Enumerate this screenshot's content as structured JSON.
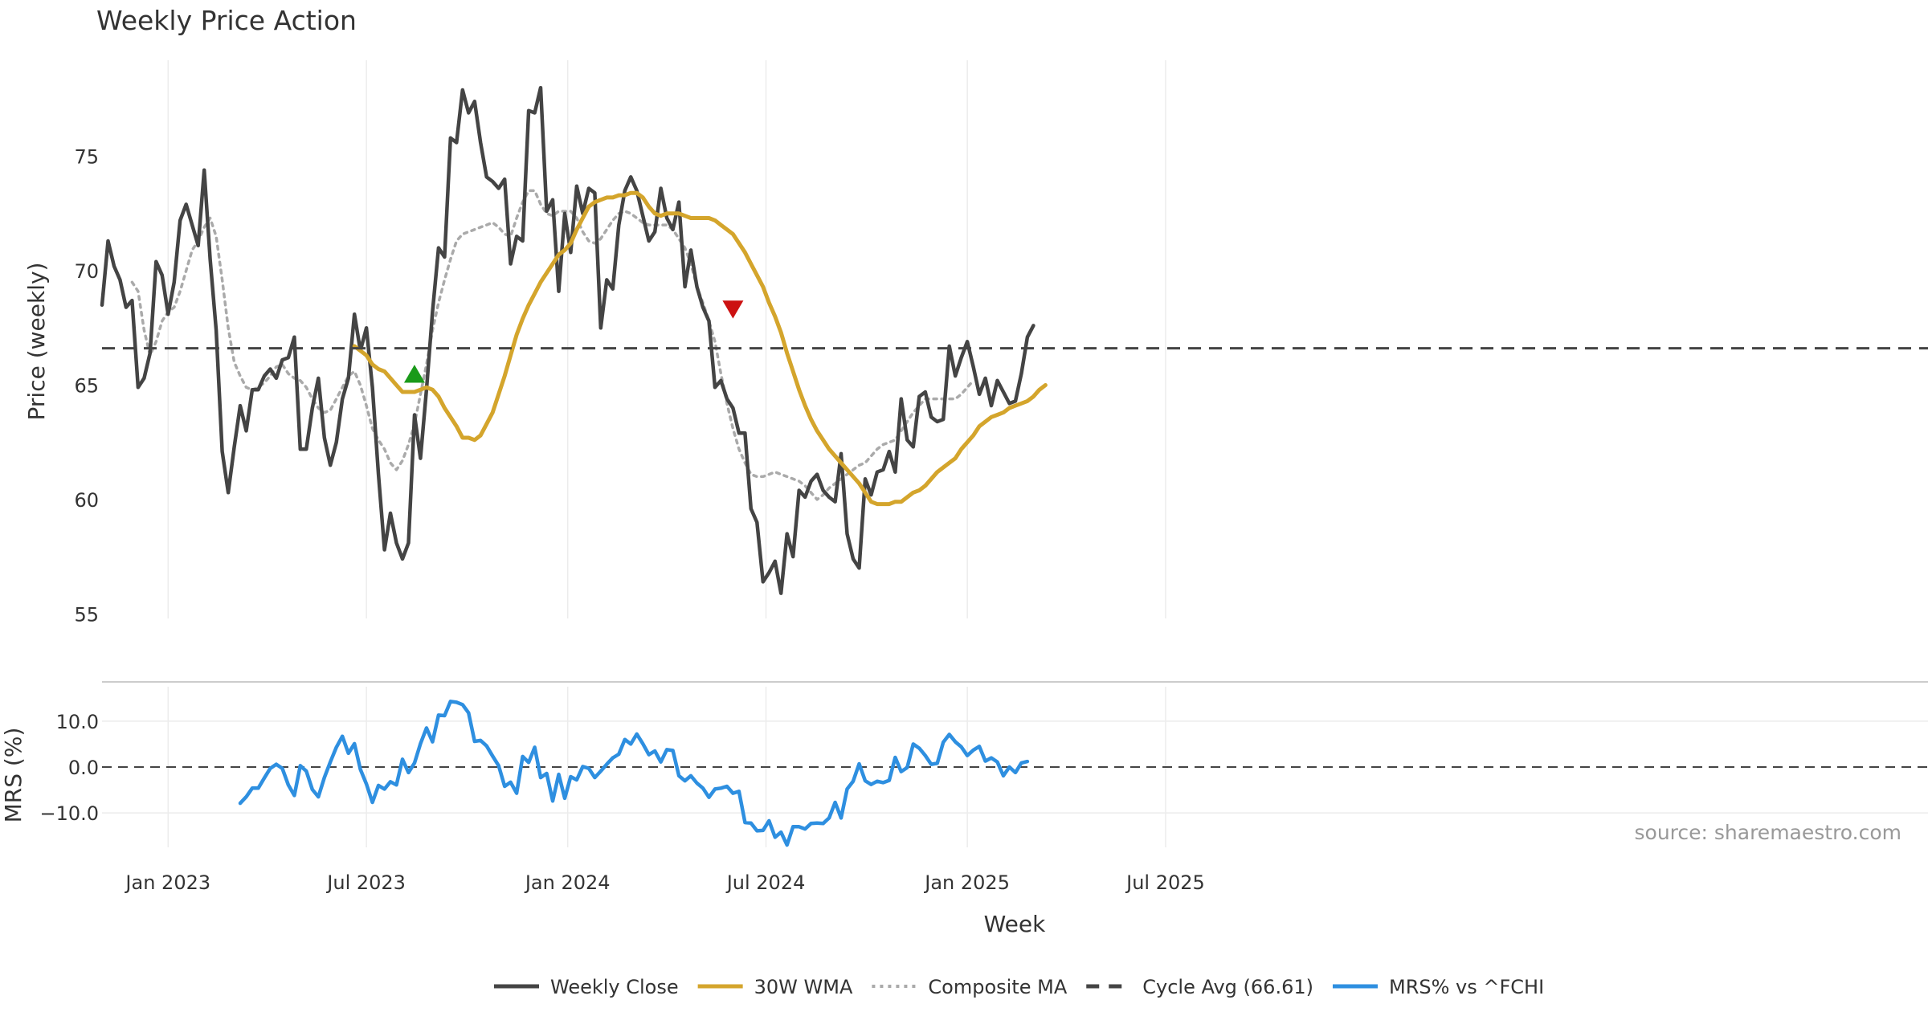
{
  "chart_data": {
    "type": "line",
    "title": "Weekly Price Action",
    "source_note": "source: sharemaestro.com",
    "xlabel": "Week",
    "x_ticks": [
      "Jan 2023",
      "Jul 2023",
      "Jan 2024",
      "Jul 2024",
      "Jan 2025",
      "Jul 2025"
    ],
    "price_panel": {
      "ylabel": "Price (weekly)",
      "ylim": [
        54.8,
        79.2
      ],
      "y_ticks": [
        "55",
        "60",
        "65",
        "70",
        "75"
      ],
      "cycle_avg": 66.61,
      "series": [
        {
          "name": "Weekly Close",
          "color": "#444444",
          "style": "solid",
          "start_week": 0,
          "values": [
            68.5,
            71.3,
            70.2,
            69.6,
            68.4,
            68.7,
            64.9,
            65.3,
            66.4,
            70.4,
            69.8,
            68.1,
            69.5,
            72.2,
            72.9,
            72.0,
            71.1,
            74.4,
            70.5,
            67.4,
            62.1,
            60.3,
            62.3,
            64.1,
            63.0,
            64.8,
            64.8,
            65.4,
            65.7,
            65.3,
            66.1,
            66.2,
            67.1,
            62.2,
            62.2,
            64.0,
            65.3,
            62.7,
            61.5,
            62.5,
            64.4,
            65.3,
            68.1,
            66.5,
            67.5,
            64.9,
            61.1,
            57.8,
            59.4,
            58.1,
            57.4,
            58.1,
            63.7,
            61.8,
            64.8,
            68.2,
            71.0,
            70.6,
            75.8,
            75.6,
            77.9,
            76.9,
            77.4,
            75.6,
            74.1,
            73.9,
            73.6,
            74.0,
            70.3,
            71.5,
            71.3,
            77.0,
            76.9,
            78.0,
            72.6,
            73.1,
            69.1,
            72.5,
            70.8,
            73.7,
            72.5,
            73.6,
            73.4,
            67.5,
            69.6,
            69.2,
            72.0,
            73.5,
            74.1,
            73.5,
            72.4,
            71.3,
            71.7,
            73.6,
            72.3,
            71.8,
            73.0,
            69.3,
            70.9,
            69.3,
            68.4,
            67.8,
            64.9,
            65.2,
            64.4,
            64.0,
            62.9,
            62.9,
            59.6,
            59.0,
            56.4,
            56.8,
            57.3,
            55.9,
            58.5,
            57.5,
            60.4,
            60.1,
            60.8,
            61.1,
            60.4,
            60.1,
            59.9,
            62.0,
            58.5,
            57.4,
            57.0,
            60.9,
            60.2,
            61.2,
            61.3,
            62.1,
            61.2,
            64.4,
            62.6,
            62.3,
            64.5,
            64.7,
            63.6,
            63.4,
            63.5,
            66.7,
            65.4,
            66.2,
            66.9,
            65.8,
            64.6,
            65.3,
            64.1,
            65.2,
            64.7,
            64.2,
            64.3,
            65.5,
            67.1,
            67.6
          ]
        },
        {
          "name": "30W WMA",
          "color": "#d4a52c",
          "style": "solid",
          "start_week": 42,
          "values": [
            66.7,
            66.5,
            66.3,
            65.9,
            65.7,
            65.6,
            65.3,
            65.0,
            64.7,
            64.7,
            64.7,
            64.8,
            64.9,
            64.8,
            64.5,
            64.0,
            63.6,
            63.2,
            62.7,
            62.7,
            62.6,
            62.8,
            63.3,
            63.8,
            64.6,
            65.4,
            66.3,
            67.2,
            67.9,
            68.5,
            69.0,
            69.5,
            69.9,
            70.3,
            70.7,
            70.9,
            71.2,
            71.8,
            72.3,
            72.8,
            73.0,
            73.1,
            73.2,
            73.2,
            73.3,
            73.3,
            73.4,
            73.4,
            73.2,
            72.8,
            72.5,
            72.4,
            72.5,
            72.5,
            72.5,
            72.4,
            72.3,
            72.3,
            72.3,
            72.3,
            72.2,
            72.0,
            71.8,
            71.6,
            71.2,
            70.8,
            70.3,
            69.8,
            69.3,
            68.6,
            68.0,
            67.3,
            66.4,
            65.6,
            64.8,
            64.1,
            63.5,
            63.0,
            62.6,
            62.2,
            61.9,
            61.6,
            61.3,
            61.0,
            60.7,
            60.3,
            59.9,
            59.8,
            59.8,
            59.8,
            59.9,
            59.9,
            60.1,
            60.3,
            60.4,
            60.6,
            60.9,
            61.2,
            61.4,
            61.6,
            61.8,
            62.2,
            62.5,
            62.8,
            63.2,
            63.4,
            63.6,
            63.7,
            63.8,
            64.0,
            64.1,
            64.2,
            64.3,
            64.5,
            64.8,
            65.0
          ]
        },
        {
          "name": "Composite MA",
          "color": "#aaaaaa",
          "style": "dotted",
          "start_week": 5,
          "values": [
            69.5,
            69.1,
            67.4,
            66.3,
            66.9,
            67.8,
            68.2,
            68.4,
            69.1,
            70.0,
            70.9,
            71.3,
            71.9,
            72.3,
            71.5,
            69.6,
            67.5,
            66.0,
            65.4,
            64.9,
            64.8,
            64.9,
            65.1,
            65.4,
            65.8,
            65.9,
            65.5,
            65.3,
            65.2,
            64.9,
            64.4,
            64.0,
            63.8,
            63.9,
            64.4,
            64.9,
            65.4,
            65.6,
            65.0,
            64.1,
            63.1,
            62.6,
            62.2,
            61.6,
            61.3,
            61.7,
            62.4,
            63.3,
            64.6,
            65.9,
            67.4,
            68.6,
            69.6,
            70.5,
            71.3,
            71.6,
            71.7,
            71.8,
            71.9,
            72.0,
            72.1,
            71.9,
            71.6,
            71.5,
            72.3,
            73.0,
            73.5,
            73.5,
            72.9,
            72.5,
            72.4,
            72.6,
            72.6,
            72.6,
            72.3,
            71.7,
            71.3,
            71.2,
            71.4,
            71.8,
            72.2,
            72.5,
            72.6,
            72.5,
            72.3,
            72.1,
            72.0,
            72.0,
            72.0,
            72.0,
            71.8,
            71.4,
            71.0,
            70.3,
            69.3,
            68.6,
            67.8,
            66.9,
            65.5,
            64.2,
            63.1,
            62.2,
            61.6,
            61.1,
            61.0,
            61.0,
            61.1,
            61.2,
            61.1,
            61.0,
            60.9,
            60.8,
            60.6,
            60.3,
            60.0,
            60.2,
            60.5,
            60.7,
            60.9,
            61.1,
            61.3,
            61.5,
            61.6,
            61.9,
            62.2,
            62.4,
            62.5,
            62.6,
            63.0,
            63.4,
            63.8,
            64.1,
            64.4,
            64.4,
            64.4,
            64.4,
            64.4,
            64.4,
            64.6,
            64.9,
            65.2
          ]
        }
      ],
      "markers": [
        {
          "type": "buy",
          "week": 52,
          "value": 65.4,
          "color": "#1a9a1a"
        },
        {
          "type": "sell",
          "week": 105,
          "value": 68.4,
          "color": "#cc1111"
        }
      ]
    },
    "mrs_panel": {
      "ylabel": "MRS (%)",
      "ylim": [
        -17.5,
        17.5
      ],
      "y_ticks": [
        "10.0",
        "0.0",
        "−10.0"
      ],
      "series": [
        {
          "name": "MRS% vs ^FCHI",
          "color": "#2e8fe0",
          "style": "solid",
          "start_week": 23,
          "values": [
            -7.9,
            -6.5,
            -4.6,
            -4.6,
            -2.4,
            -0.3,
            0.6,
            -0.3,
            -3.9,
            -6.2,
            0.3,
            -0.9,
            -4.9,
            -6.5,
            -2.3,
            1.1,
            4.3,
            6.7,
            3.0,
            5.1,
            -0.5,
            -3.7,
            -7.7,
            -4.0,
            -4.8,
            -3.2,
            -3.9,
            1.7,
            -1.2,
            0.9,
            5.1,
            8.5,
            5.5,
            11.3,
            11.2,
            14.3,
            14.1,
            13.6,
            11.8,
            5.6,
            5.8,
            4.6,
            2.4,
            0.3,
            -4.2,
            -3.3,
            -5.7,
            2.3,
            1.0,
            4.3,
            -2.3,
            -1.4,
            -7.4,
            -1.6,
            -6.8,
            -2.1,
            -2.8,
            0.1,
            -0.3,
            -2.3,
            -0.9,
            0.6,
            2.0,
            2.8,
            6.0,
            5.0,
            7.2,
            5.1,
            2.7,
            3.5,
            1.1,
            3.8,
            3.6,
            -1.9,
            -3.0,
            -1.9,
            -3.5,
            -4.6,
            -6.6,
            -4.8,
            -4.6,
            -4.2,
            -5.7,
            -5.3,
            -12.1,
            -12.2,
            -13.9,
            -13.8,
            -11.7,
            -15.3,
            -14.2,
            -17.0,
            -13.0,
            -13.0,
            -13.5,
            -12.3,
            -12.2,
            -12.3,
            -11.1,
            -7.7,
            -11.1,
            -4.8,
            -3.1,
            0.7,
            -3.0,
            -3.8,
            -3.1,
            -3.4,
            -2.9,
            2.1,
            -1.0,
            -0.1,
            5.0,
            4.1,
            2.5,
            0.6,
            0.8,
            5.4,
            7.1,
            5.5,
            4.4,
            2.5,
            3.7,
            4.5,
            1.3,
            2.0,
            1.1,
            -1.9,
            0.0,
            -1.2,
            0.9,
            1.2
          ]
        }
      ]
    },
    "legend": [
      {
        "label": "Weekly Close",
        "color": "#444444",
        "style": "solid"
      },
      {
        "label": "30W WMA",
        "color": "#d4a52c",
        "style": "solid"
      },
      {
        "label": "Composite MA",
        "color": "#aaaaaa",
        "style": "dotted"
      },
      {
        "label": "Cycle Avg (66.61)",
        "color": "#444444",
        "style": "dashed"
      },
      {
        "label": "MRS% vs ^FCHI",
        "color": "#2e8fe0",
        "style": "solid"
      }
    ]
  }
}
